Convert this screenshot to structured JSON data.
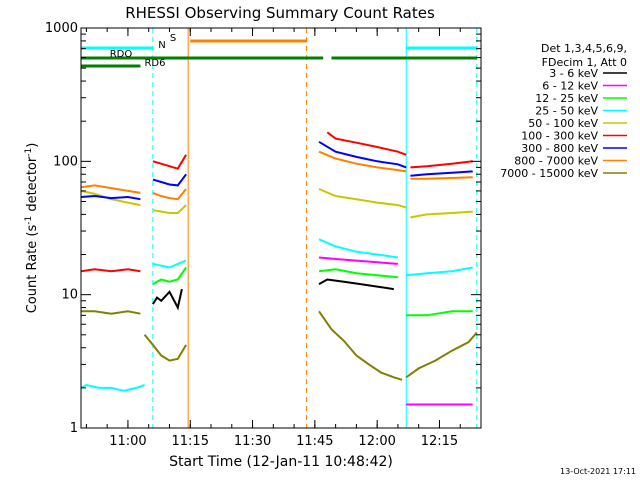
{
  "chart_data": {
    "type": "line",
    "title": "RHESSI Observing Summary Count Rates",
    "xlabel": "Start Time (12-Jan-11 10:48:42)",
    "ylabel_main": "Count Rate (s",
    "ylabel_sup1": "-1",
    "ylabel_mid": " detector",
    "ylabel_sup2": "-1",
    "ylabel_end": ")",
    "yscale": "log",
    "ylim": [
      1,
      1000
    ],
    "xlim": [
      "10:48:42",
      "12:25:00"
    ],
    "x_ticks": [
      "11:00",
      "11:15",
      "11:30",
      "11:45",
      "12:00",
      "12:15"
    ],
    "y_ticks": [
      "1",
      "10",
      "100",
      "1000"
    ],
    "grid": false,
    "legend_position": "right",
    "legend_header": [
      "Det 1,3,4,5,6,9,",
      "FDecim 1, Att 0"
    ],
    "series": [
      {
        "name": "3 - 6 keV",
        "color": "#000000",
        "segments": [
          {
            "x": [
              "11:06",
              "11:07",
              "11:08",
              "11:10",
              "11:12",
              "11:13"
            ],
            "y": [
              8.5,
              9.5,
              9.0,
              10.5,
              8.0,
              11
            ]
          },
          {
            "x": [
              "11:46",
              "11:48",
              "11:52",
              "11:56",
              "12:00",
              "12:04"
            ],
            "y": [
              12,
              13,
              12.5,
              12,
              11.5,
              11
            ]
          }
        ]
      },
      {
        "name": "6 - 12 keV",
        "color": "#ff00ff",
        "segments": [
          {
            "x": [
              "11:46",
              "11:50",
              "11:55",
              "12:00",
              "12:05"
            ],
            "y": [
              19,
              18.5,
              18,
              17.5,
              17
            ]
          },
          {
            "x": [
              "12:07",
              "12:12",
              "12:18",
              "12:23"
            ],
            "y": [
              1.5,
              1.5,
              1.5,
              1.5
            ]
          }
        ]
      },
      {
        "name": "12 - 25 keV",
        "color": "#00ff00",
        "segments": [
          {
            "x": [
              "11:06",
              "11:08",
              "11:10",
              "11:12",
              "11:14"
            ],
            "y": [
              12,
              13,
              12.5,
              13,
              16
            ]
          },
          {
            "x": [
              "11:46",
              "11:50",
              "11:55",
              "12:00",
              "12:05"
            ],
            "y": [
              15,
              15.5,
              14.5,
              14,
              13.5
            ]
          },
          {
            "x": [
              "12:07",
              "12:12",
              "12:18",
              "12:23"
            ],
            "y": [
              7,
              7,
              7.5,
              7.5
            ]
          }
        ]
      },
      {
        "name": "25 - 50 keV",
        "color": "#00ffff",
        "segments": [
          {
            "x": [
              "10:48:42",
              "10:50",
              "10:53",
              "10:56",
              "10:59",
              "11:02",
              "11:04"
            ],
            "y": [
              2,
              2.1,
              2,
              2,
              1.9,
              2,
              2.1
            ]
          },
          {
            "x": [
              "11:06",
              "11:08",
              "11:10",
              "11:12",
              "11:14"
            ],
            "y": [
              17,
              16.5,
              16,
              17,
              18
            ]
          },
          {
            "x": [
              "11:46",
              "11:50",
              "11:55",
              "12:00",
              "12:05"
            ],
            "y": [
              26,
              23,
              21,
              20,
              19
            ]
          },
          {
            "x": [
              "12:07",
              "12:12",
              "12:18",
              "12:23"
            ],
            "y": [
              14,
              14.5,
              15,
              16
            ]
          }
        ]
      },
      {
        "name": "50 - 100 keV",
        "color": "#c8c800",
        "segments": [
          {
            "x": [
              "10:48:42",
              "10:52",
              "10:56",
              "11:00",
              "11:03"
            ],
            "y": [
              60,
              57,
              52,
              49,
              47
            ]
          },
          {
            "x": [
              "11:06",
              "11:08",
              "11:10",
              "11:12",
              "11:14"
            ],
            "y": [
              43,
              42,
              41,
              41,
              47
            ]
          },
          {
            "x": [
              "11:46",
              "11:50",
              "11:55",
              "12:00",
              "12:05",
              "12:07"
            ],
            "y": [
              62,
              55,
              52,
              49,
              47,
              45
            ]
          },
          {
            "x": [
              "12:08",
              "12:12",
              "12:18",
              "12:23"
            ],
            "y": [
              38,
              40,
              41,
              42
            ]
          }
        ]
      },
      {
        "name": "100 - 300 keV",
        "color": "#ff0000",
        "segments": [
          {
            "x": [
              "10:48:42",
              "10:52",
              "10:56",
              "11:00",
              "11:03"
            ],
            "y": [
              15,
              15.5,
              15,
              15.5,
              15
            ]
          },
          {
            "x": [
              "11:06",
              "11:08",
              "11:10",
              "11:12",
              "11:14"
            ],
            "y": [
              100,
              96,
              92,
              88,
              112
            ]
          },
          {
            "x": [
              "11:48",
              "11:50",
              "11:55",
              "12:00",
              "12:05",
              "12:07"
            ],
            "y": [
              165,
              148,
              138,
              128,
              118,
              112
            ]
          },
          {
            "x": [
              "12:08",
              "12:12",
              "12:18",
              "12:23"
            ],
            "y": [
              90,
              92,
              96,
              100
            ]
          }
        ]
      },
      {
        "name": "300 - 800 keV",
        "color": "#0000ff",
        "segments": [
          {
            "x": [
              "10:48:42",
              "10:52",
              "10:56",
              "11:00",
              "11:03"
            ],
            "y": [
              54,
              55,
              53,
              54,
              52
            ]
          },
          {
            "x": [
              "11:06",
              "11:08",
              "11:10",
              "11:12",
              "11:14"
            ],
            "y": [
              73,
              70,
              67,
              66,
              80
            ]
          },
          {
            "x": [
              "11:46",
              "11:50",
              "11:55",
              "12:00",
              "12:05",
              "12:07"
            ],
            "y": [
              140,
              118,
              108,
              100,
              95,
              90
            ]
          },
          {
            "x": [
              "12:08",
              "12:12",
              "12:18",
              "12:23"
            ],
            "y": [
              78,
              80,
              82,
              84
            ]
          }
        ]
      },
      {
        "name": "800 - 7000 keV",
        "color": "#ff8000",
        "segments": [
          {
            "x": [
              "10:48:42",
              "10:52",
              "10:56",
              "11:00",
              "11:03"
            ],
            "y": [
              64,
              66,
              63,
              60,
              58
            ]
          },
          {
            "x": [
              "11:06",
              "11:08",
              "11:10",
              "11:12",
              "11:14"
            ],
            "y": [
              58,
              55,
              53,
              52,
              62
            ]
          },
          {
            "x": [
              "11:46",
              "11:50",
              "11:55",
              "12:00",
              "12:05",
              "12:07"
            ],
            "y": [
              118,
              105,
              96,
              90,
              86,
              84
            ]
          },
          {
            "x": [
              "12:08",
              "12:12",
              "12:18",
              "12:23"
            ],
            "y": [
              74,
              74,
              75,
              76
            ]
          }
        ]
      },
      {
        "name": "7000 - 15000 keV",
        "color": "#808000",
        "segments": [
          {
            "x": [
              "10:48:42",
              "10:52",
              "10:56",
              "11:00",
              "11:03"
            ],
            "y": [
              7.5,
              7.5,
              7.2,
              7.5,
              7.2
            ]
          },
          {
            "x": [
              "11:04",
              "11:06",
              "11:08",
              "11:10",
              "11:12",
              "11:14"
            ],
            "y": [
              5.0,
              4.2,
              3.5,
              3.2,
              3.3,
              4.2
            ]
          },
          {
            "x": [
              "11:46",
              "11:49",
              "11:52",
              "11:55",
              "11:58",
              "12:01",
              "12:04",
              "12:06"
            ],
            "y": [
              7.5,
              5.5,
              4.5,
              3.5,
              3.0,
              2.6,
              2.4,
              2.3
            ]
          },
          {
            "x": [
              "12:07",
              "12:10",
              "12:14",
              "12:18",
              "12:22",
              "12:24"
            ],
            "y": [
              2.4,
              2.8,
              3.2,
              3.8,
              4.4,
              5.2
            ]
          }
        ]
      }
    ],
    "flag_lines": [
      {
        "label": "",
        "color": "#00ffff",
        "segments": [
          [
            "10:48:42",
            "11:06"
          ],
          [
            "12:07",
            "12:24"
          ]
        ]
      },
      {
        "label": "RDO",
        "color": "#008000",
        "segments": [
          [
            "10:48:42",
            "11:47"
          ],
          [
            "11:49",
            "12:24"
          ]
        ]
      },
      {
        "label": "RD6",
        "color": "#008000",
        "segments": [
          [
            "10:48:42",
            "11:03"
          ]
        ]
      },
      {
        "label": "N",
        "color": "#00ffff",
        "segments": []
      },
      {
        "label": "S",
        "color": "#ff8000",
        "segments": [
          [
            "11:15",
            "11:43"
          ]
        ]
      }
    ],
    "vertical_markers": [
      {
        "x": "11:06",
        "color": "#00ffff",
        "style": "dashed"
      },
      {
        "x": "11:14:30",
        "color": "#ff8000",
        "style": "solid"
      },
      {
        "x": "11:43",
        "color": "#ff8000",
        "style": "dashed"
      },
      {
        "x": "12:07",
        "color": "#00ffff",
        "style": "solid"
      },
      {
        "x": "12:24",
        "color": "#00ffff",
        "style": "dashed"
      }
    ],
    "footer_date": "13-Oct-2021 17:11"
  }
}
